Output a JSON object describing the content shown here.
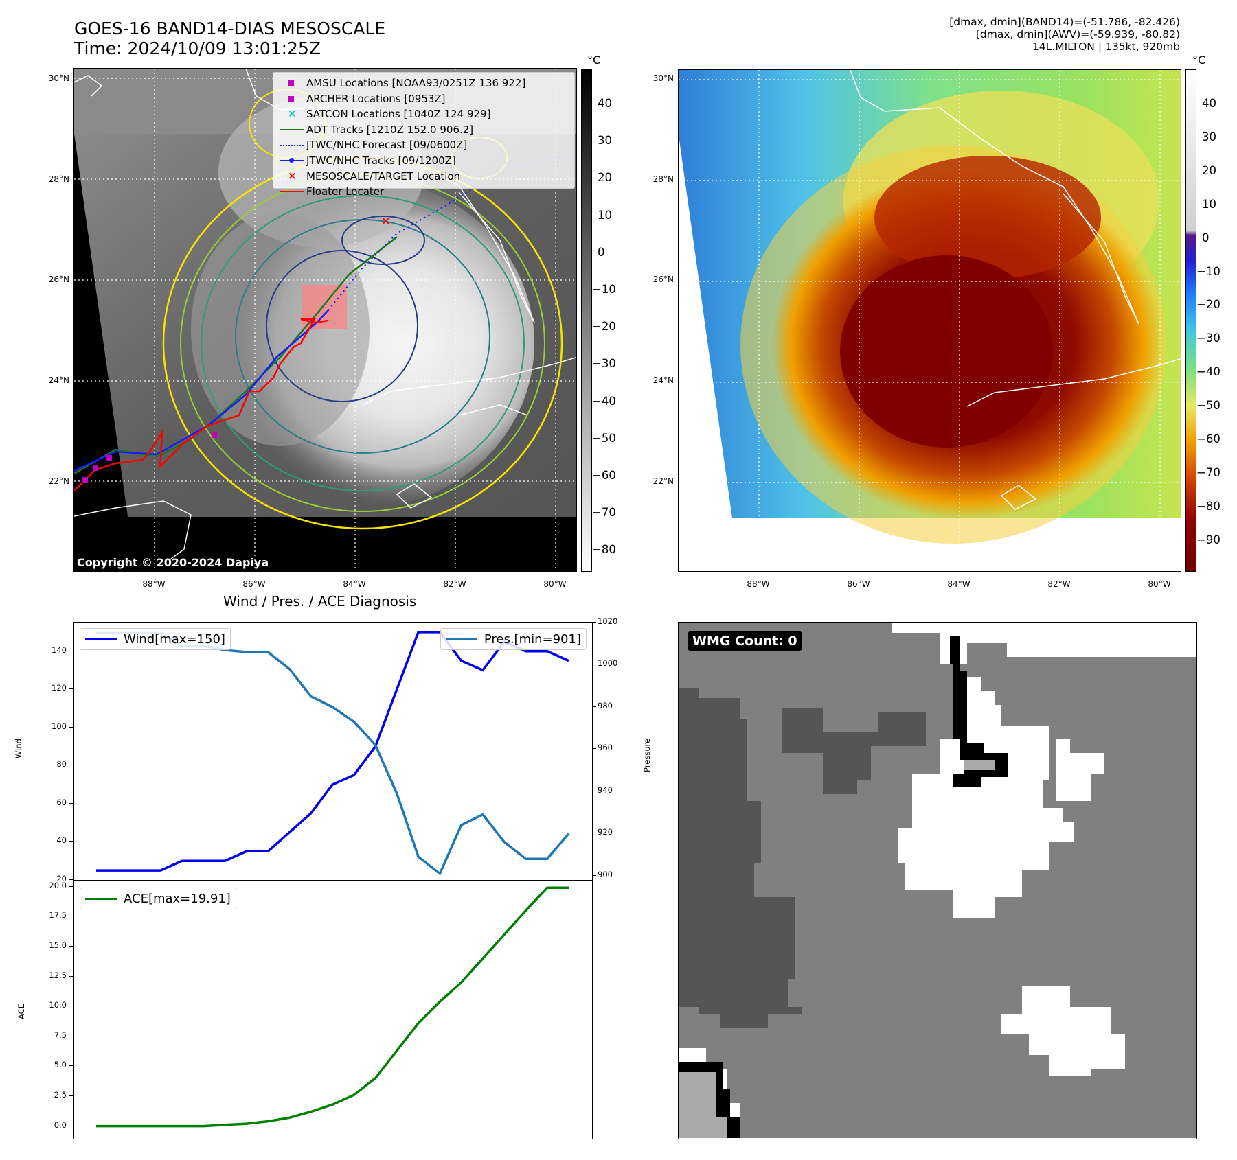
{
  "header": {
    "title_line1": "GOES-16 BAND14-DIAS MESOSCALE",
    "title_line2": "Time: 2024/10/09 13:01:25Z",
    "right_line1": "[dmax, dmin](BAND14)=(-51.786, -82.426)",
    "right_line2": "[dmax, dmin](AWV)=(-59.939, -80.82)",
    "right_line3": "14L.MILTON | 135kt, 920mb"
  },
  "map_axes": {
    "lat_labels": [
      "30°N",
      "28°N",
      "26°N",
      "24°N",
      "22°N"
    ],
    "lon_labels": [
      "88°W",
      "86°W",
      "84°W",
      "82°W",
      "80°W"
    ]
  },
  "left_map": {
    "copyright": "Copyright © 2020-2024 Dapiya",
    "colorbar_unit": "°C",
    "colorbar_ticks": [
      "40",
      "30",
      "20",
      "10",
      "0",
      "−10",
      "−20",
      "−30",
      "−40",
      "−50",
      "−60",
      "−70",
      "−80"
    ],
    "legend": [
      {
        "label": "AMSU Locations [NOAA93/0251Z 136 922]",
        "symbol": "square",
        "color": "#c000c0"
      },
      {
        "label": "ARCHER Locations [0953Z]",
        "symbol": "square",
        "color": "#c000c0"
      },
      {
        "label": "SATCON Locations [1040Z 124 929]",
        "symbol": "x",
        "color": "#00c0c0"
      },
      {
        "label": "ADT Tracks [1210Z 152.0 906.2]",
        "symbol": "line",
        "color": "#1a7a1a"
      },
      {
        "label": "JTWC/NHC Forecast [09/0600Z]",
        "symbol": "dotted",
        "color": "#1a1aff"
      },
      {
        "label": "JTWC/NHC Tracks [09/1200Z]",
        "symbol": "line-dot",
        "color": "#1a1aff"
      },
      {
        "label": "MESOSCALE/TARGET Location",
        "symbol": "x",
        "color": "#ff0000"
      },
      {
        "label": "Floater Locater",
        "symbol": "line",
        "color": "#ff0000"
      }
    ]
  },
  "right_map": {
    "colorbar_unit": "°C",
    "colorbar_ticks": [
      "40",
      "30",
      "20",
      "10",
      "0",
      "−10",
      "−20",
      "−30",
      "−40",
      "−50",
      "−60",
      "−70",
      "−80",
      "−90"
    ]
  },
  "wmg": {
    "label": "WMG Count: 0"
  },
  "chart_data": [
    {
      "type": "line",
      "title": "Wind / Pres. / ACE Diagnosis",
      "ylabel": "Wind",
      "y2label": "Pressure",
      "x": [
        1,
        2,
        3,
        4,
        5,
        6,
        7,
        8,
        9,
        10,
        11,
        12,
        13,
        14,
        15,
        16,
        17,
        18,
        19,
        20,
        21,
        22,
        23
      ],
      "ylim": [
        20,
        155
      ],
      "y2lim": [
        898,
        1020
      ],
      "yticks": [
        "140",
        "120",
        "100",
        "80",
        "60",
        "40",
        "20"
      ],
      "y2ticks": [
        "1020",
        "1000",
        "980",
        "960",
        "940",
        "920",
        "900"
      ],
      "series": [
        {
          "name": "Wind[max=150]",
          "axis": "left",
          "color": "#0000ee",
          "values": [
            25,
            25,
            25,
            25,
            30,
            30,
            30,
            35,
            35,
            45,
            55,
            70,
            75,
            90,
            120,
            150,
            150,
            135,
            130,
            145,
            140,
            140,
            135
          ]
        },
        {
          "name": "Pres.[min=901]",
          "axis": "right",
          "color": "#1f77b4",
          "values": [
            1015,
            1015,
            1015,
            1015,
            1009,
            1009,
            1007,
            1006,
            1006,
            998,
            985,
            980,
            973,
            962,
            939,
            909,
            901,
            924,
            929,
            916,
            908,
            908,
            920
          ]
        }
      ]
    },
    {
      "type": "line",
      "ylabel": "ACE",
      "x": [
        1,
        2,
        3,
        4,
        5,
        6,
        7,
        8,
        9,
        10,
        11,
        12,
        13,
        14,
        15,
        16,
        17,
        18,
        19,
        20,
        21,
        22,
        23
      ],
      "ylim": [
        -1,
        20.5
      ],
      "yticks": [
        "20.0",
        "17.5",
        "15.0",
        "12.5",
        "10.0",
        "7.5",
        "5.0",
        "2.5",
        "0.0"
      ],
      "series": [
        {
          "name": "ACE[max=19.91]",
          "color": "#008000",
          "values": [
            0,
            0,
            0,
            0,
            0,
            0,
            0.1,
            0.2,
            0.4,
            0.7,
            1.2,
            1.8,
            2.6,
            4.0,
            6.3,
            8.6,
            10.4,
            12.0,
            14.0,
            16.0,
            18.0,
            19.91,
            19.91
          ]
        }
      ]
    }
  ]
}
